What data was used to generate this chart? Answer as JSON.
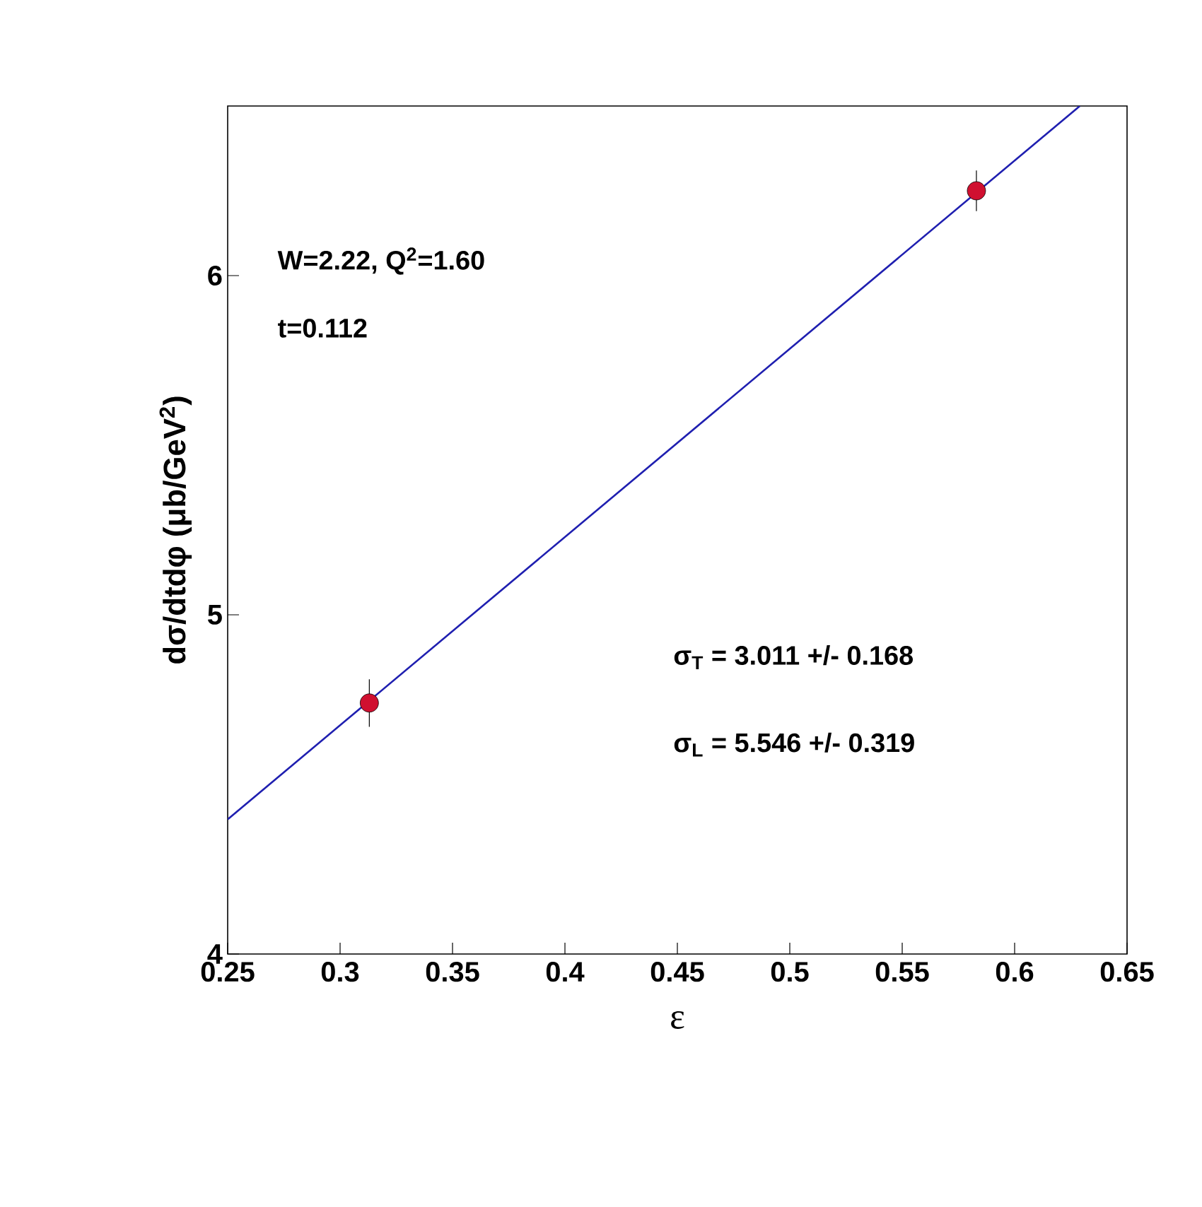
{
  "chart_data": {
    "type": "scatter",
    "xlabel": "ε",
    "ylabel": "dσ/dtdφ (μb/GeV$^{2}$)",
    "xlim": [
      0.25,
      0.65
    ],
    "xticks": [
      0.25,
      0.3,
      0.35,
      0.4,
      0.45,
      0.5,
      0.55,
      0.6,
      0.65
    ],
    "ylim": [
      4,
      6.5
    ],
    "yticks": [
      4,
      5,
      6
    ],
    "series": [
      {
        "type": "line",
        "color": "#1f1fb0",
        "x": [
          0.25,
          0.629
        ],
        "values": [
          4.397,
          6.5
        ],
        "marker": "none",
        "line_style": "solid"
      },
      {
        "color": "#d01030",
        "x": [
          0.313,
          0.583
        ],
        "values": [
          4.74,
          6.25
        ],
        "errors": [
          0.07,
          0.06
        ],
        "marker": "circle"
      }
    ],
    "annotations": [
      "W=2.22, Q$^{2}$=1.60",
      "t=0.112",
      "σ$_{T}$ = 3.011 +/- 0.168",
      "σ$_{L}$ = 5.546 +/- 0.319"
    ],
    "grid": false
  }
}
